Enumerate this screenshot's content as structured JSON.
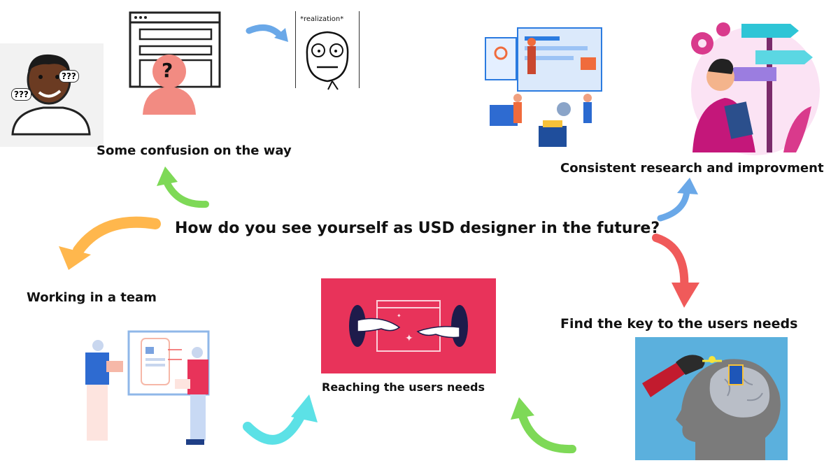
{
  "center_question": "How do you see yourself as USD designer in the future?",
  "labels": {
    "confusion": "Some confusion on the way",
    "research": "Consistent research and improvment",
    "team": "Working in a team",
    "reaching": "Reaching the users needs",
    "key": "Find the key to the users needs"
  },
  "meme": {
    "caption": "*realization*",
    "question_marks_left": "???",
    "question_marks_right": "???",
    "question_glyph": "?"
  },
  "colors": {
    "green": "#7ed957",
    "blue": "#6aa8e8",
    "orange": "#ffb74d",
    "red": "#f05a5a",
    "cyan": "#5ce1e6",
    "red_card": "#e8335a",
    "brain_bg": "#5bb0dd"
  }
}
